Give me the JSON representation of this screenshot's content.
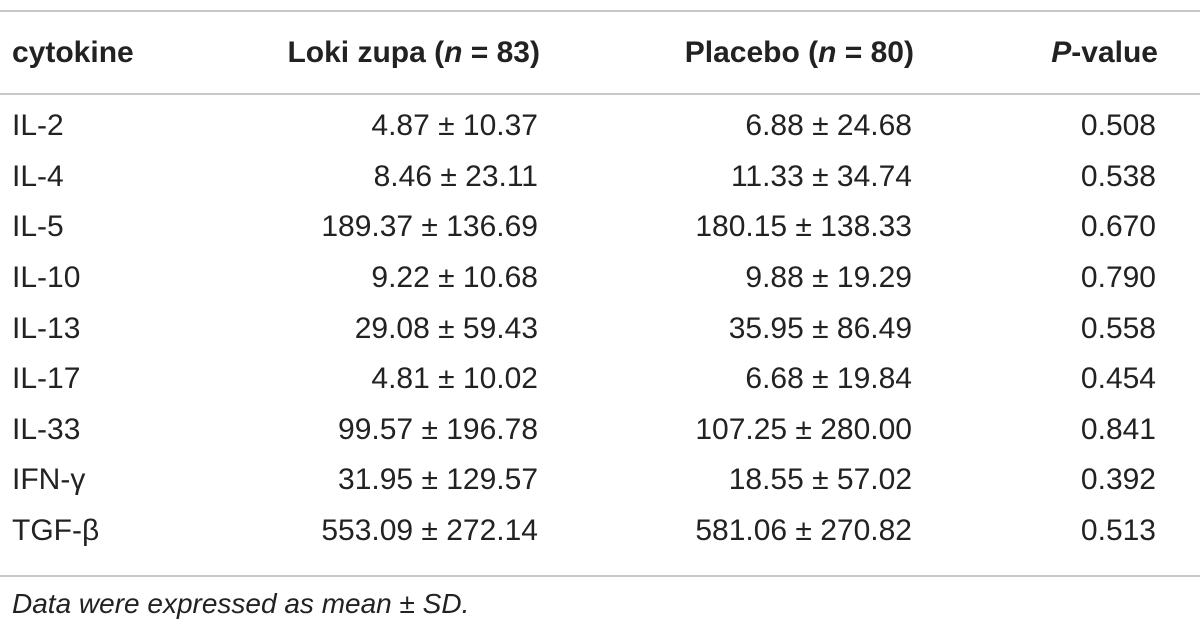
{
  "table": {
    "headers": {
      "cytokine": "cytokine",
      "loki_prefix": "Loki zupa (",
      "loki_n": "n",
      "loki_suffix": " = 83)",
      "placebo_prefix": "Placebo (",
      "placebo_n": "n",
      "placebo_suffix": " = 80)",
      "p_italic": "P",
      "p_suffix": "-value"
    },
    "rows": [
      {
        "cytokine": "IL-2",
        "loki": "4.87 ± 10.37",
        "placebo": "6.88 ± 24.68",
        "p": "0.508"
      },
      {
        "cytokine": "IL-4",
        "loki": "8.46 ± 23.11",
        "placebo": "11.33 ± 34.74",
        "p": "0.538"
      },
      {
        "cytokine": "IL-5",
        "loki": "189.37 ± 136.69",
        "placebo": "180.15 ± 138.33",
        "p": "0.670"
      },
      {
        "cytokine": "IL-10",
        "loki": "9.22 ± 10.68",
        "placebo": "9.88 ± 19.29",
        "p": "0.790"
      },
      {
        "cytokine": "IL-13",
        "loki": "29.08 ± 59.43",
        "placebo": "35.95 ± 86.49",
        "p": "0.558"
      },
      {
        "cytokine": "IL-17",
        "loki": "4.81 ± 10.02",
        "placebo": "6.68 ± 19.84",
        "p": "0.454"
      },
      {
        "cytokine": "IL-33",
        "loki": "99.57 ± 196.78",
        "placebo": "107.25 ± 280.00",
        "p": "0.841"
      },
      {
        "cytokine": "IFN-γ",
        "loki": "31.95 ± 129.57",
        "placebo": "18.55 ± 57.02",
        "p": "0.392"
      },
      {
        "cytokine": "TGF-β",
        "loki": "553.09 ± 272.14",
        "placebo": "581.06 ± 270.82",
        "p": "0.513"
      }
    ],
    "footnote": "Data were expressed as mean ± SD."
  }
}
